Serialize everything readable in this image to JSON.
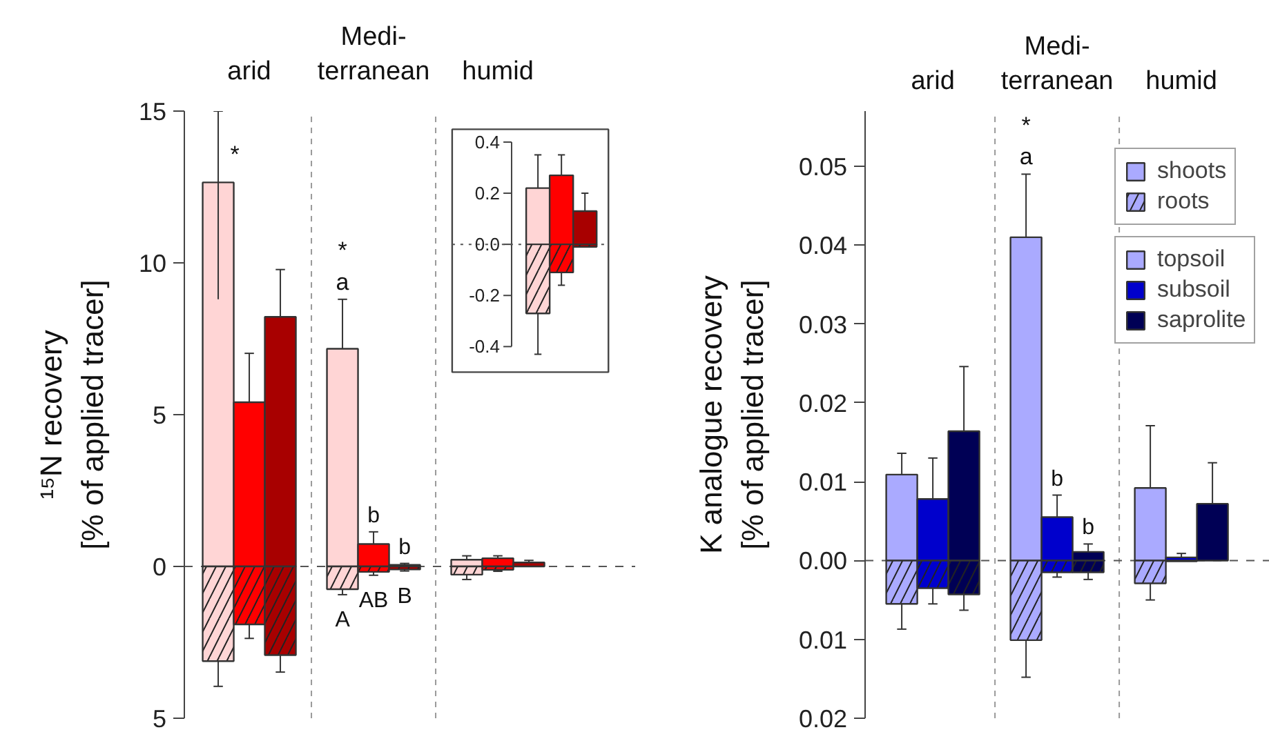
{
  "chart_data": [
    {
      "type": "bar",
      "stacked": true,
      "ylabel": "¹⁵N recovery\n[% of applied tracer]",
      "categories": [
        null,
        "arid",
        null,
        null,
        null,
        "Medi-\nterranean",
        null,
        null,
        null,
        "humid",
        null
      ],
      "ylim": [
        -5,
        15
      ],
      "yticks": [
        {
          "value": -5,
          "label": "5"
        },
        0,
        5,
        10,
        15
      ],
      "ref_lines": [
        {
          "axis": "y",
          "value": 0,
          "line_style": "dashed"
        }
      ],
      "series": [
        {
          "colors": [
            "#ffd5d5",
            "#ff0000",
            "#a80000",
            null,
            "#ffd5d5",
            "#ff0000",
            "#a80000",
            null,
            "#ffd5d5",
            "#ff0000",
            "#a80000"
          ],
          "values": [
            12.65,
            5.41,
            8.22,
            null,
            7.17,
            0.74,
            0.05,
            null,
            0.22,
            0.27,
            0.13
          ],
          "errors": [
            [
              8.8,
              15
            ],
            [
              5.41,
              7.02
            ],
            [
              8.22,
              9.78
            ],
            null,
            [
              7.17,
              8.8
            ],
            [
              0.74,
              1.14
            ],
            [
              0.05,
              0.1
            ],
            null,
            [
              0.22,
              0.35
            ],
            [
              0.27,
              0.35
            ],
            [
              0.13,
              0.2
            ]
          ],
          "value_labels": [
            "*",
            null,
            null,
            null,
            "*\na",
            "b",
            "b",
            null,
            null,
            null,
            null
          ]
        },
        {
          "colors": [
            "#ffd5d5",
            "#ff0000",
            "#a80000",
            null,
            "#ffd5d5",
            "#ff0000",
            "#a80000",
            null,
            "#ffd5d5",
            "#ff0000",
            "#a80000"
          ],
          "values": [
            -3.12,
            -1.91,
            -2.92,
            null,
            -0.75,
            -0.18,
            -0.1,
            null,
            -0.27,
            -0.11,
            null
          ],
          "errors": [
            [
              -3.95,
              -3.12
            ],
            [
              -2.37,
              -1.91
            ],
            [
              -3.48,
              -2.92
            ],
            null,
            [
              -0.93,
              -0.75
            ],
            [
              -0.29,
              -0.18
            ],
            [
              -0.15,
              -0.1
            ],
            null,
            [
              -0.43,
              -0.27
            ],
            [
              -0.16,
              -0.11
            ],
            null
          ],
          "value_labels": [
            null,
            null,
            null,
            null,
            "A",
            "AB",
            "B",
            null,
            null,
            null,
            null
          ]
        }
      ]
    },
    {
      "type": "bar",
      "stacked": true,
      "categories": [
        null,
        null,
        null
      ],
      "ylim": [
        -0.5,
        0.45
      ],
      "yticks": [
        -0.4,
        -0.2,
        {
          "value": 0,
          "label": "0.0"
        },
        0.2,
        0.4
      ],
      "tick_labels": "y",
      "ref_lines": [
        {
          "axis": "y",
          "value": 0,
          "line_style": "dotted"
        }
      ],
      "series": [
        {
          "colors": [
            "#ffd5d5",
            "#ff0000",
            "#a80000"
          ],
          "values": [
            0.22,
            0.27,
            0.13
          ],
          "errors": [
            [
              0.22,
              0.35
            ],
            [
              0.27,
              0.35
            ],
            [
              0.13,
              0.2
            ]
          ]
        },
        {
          "colors": [
            "#ffd5d5",
            "#ff0000",
            "#a80000"
          ],
          "values": [
            -0.27,
            -0.11,
            -0.01
          ],
          "errors": [
            [
              -0.43,
              -0.27
            ],
            [
              -0.16,
              -0.11
            ],
            null
          ]
        }
      ]
    },
    {
      "type": "bar",
      "stacked": true,
      "ylabel": "K analogue recovery\n[% of applied tracer]",
      "categories": [
        null,
        "arid",
        null,
        null,
        null,
        "Medi-\nterranean",
        null,
        null,
        null,
        "humid",
        null
      ],
      "ylim": [
        -0.02,
        0.057
      ],
      "yticks": [
        {
          "value": -0.02,
          "label": "0.02"
        },
        {
          "value": -0.01,
          "label": "0.01"
        },
        {
          "value": 0,
          "label": "0.00"
        },
        0.01,
        0.02,
        0.03,
        0.04,
        0.05
      ],
      "ref_lines": [
        {
          "axis": "y",
          "value": 0,
          "line_style": "dashed"
        }
      ],
      "legend": "top right",
      "annotations": [
        "topsoil",
        "subsoil",
        "saprolite"
      ],
      "series": [
        {
          "name": "shoots",
          "colors": [
            "#aaaaff",
            "#0000cc",
            "#000055",
            null,
            "#aaaaff",
            "#0000cc",
            "#000055",
            null,
            "#aaaaff",
            "#0000cc",
            "#000055"
          ],
          "values": [
            0.0109,
            0.0078,
            0.0164,
            null,
            0.041,
            0.0055,
            0.0011,
            null,
            0.0092,
            0.0004,
            0.0072
          ],
          "errors": [
            [
              0.0109,
              0.0136
            ],
            [
              0.0078,
              0.013
            ],
            [
              0.0164,
              0.0246
            ],
            null,
            [
              0.041,
              0.049
            ],
            [
              0.0055,
              0.0083
            ],
            [
              0.0011,
              0.0021
            ],
            null,
            [
              0.0092,
              0.0171
            ],
            [
              0.0004,
              0.0009
            ],
            [
              0.0072,
              0.0124
            ]
          ],
          "value_labels": [
            null,
            null,
            null,
            null,
            "*\na",
            "b",
            "b",
            null,
            null,
            null,
            null
          ]
        },
        {
          "name": "roots",
          "colors": [
            "#aaaaff",
            "#0000cc",
            "#000055",
            null,
            "#aaaaff",
            "#0000cc",
            "#000055",
            null,
            "#aaaaff",
            "#0000cc",
            "#000055"
          ],
          "values": [
            -0.0055,
            -0.0035,
            -0.0043,
            null,
            -0.0101,
            -0.0015,
            -0.0015,
            null,
            -0.0029,
            -0.0001,
            null
          ],
          "errors": [
            [
              -0.0087,
              -0.0055
            ],
            [
              -0.0055,
              -0.0035
            ],
            [
              -0.0063,
              -0.0043
            ],
            null,
            [
              -0.0148,
              -0.0101
            ],
            [
              -0.0021,
              -0.0015
            ],
            [
              -0.0024,
              -0.0015
            ],
            null,
            [
              -0.005,
              -0.0029
            ],
            null,
            null
          ]
        }
      ]
    }
  ]
}
